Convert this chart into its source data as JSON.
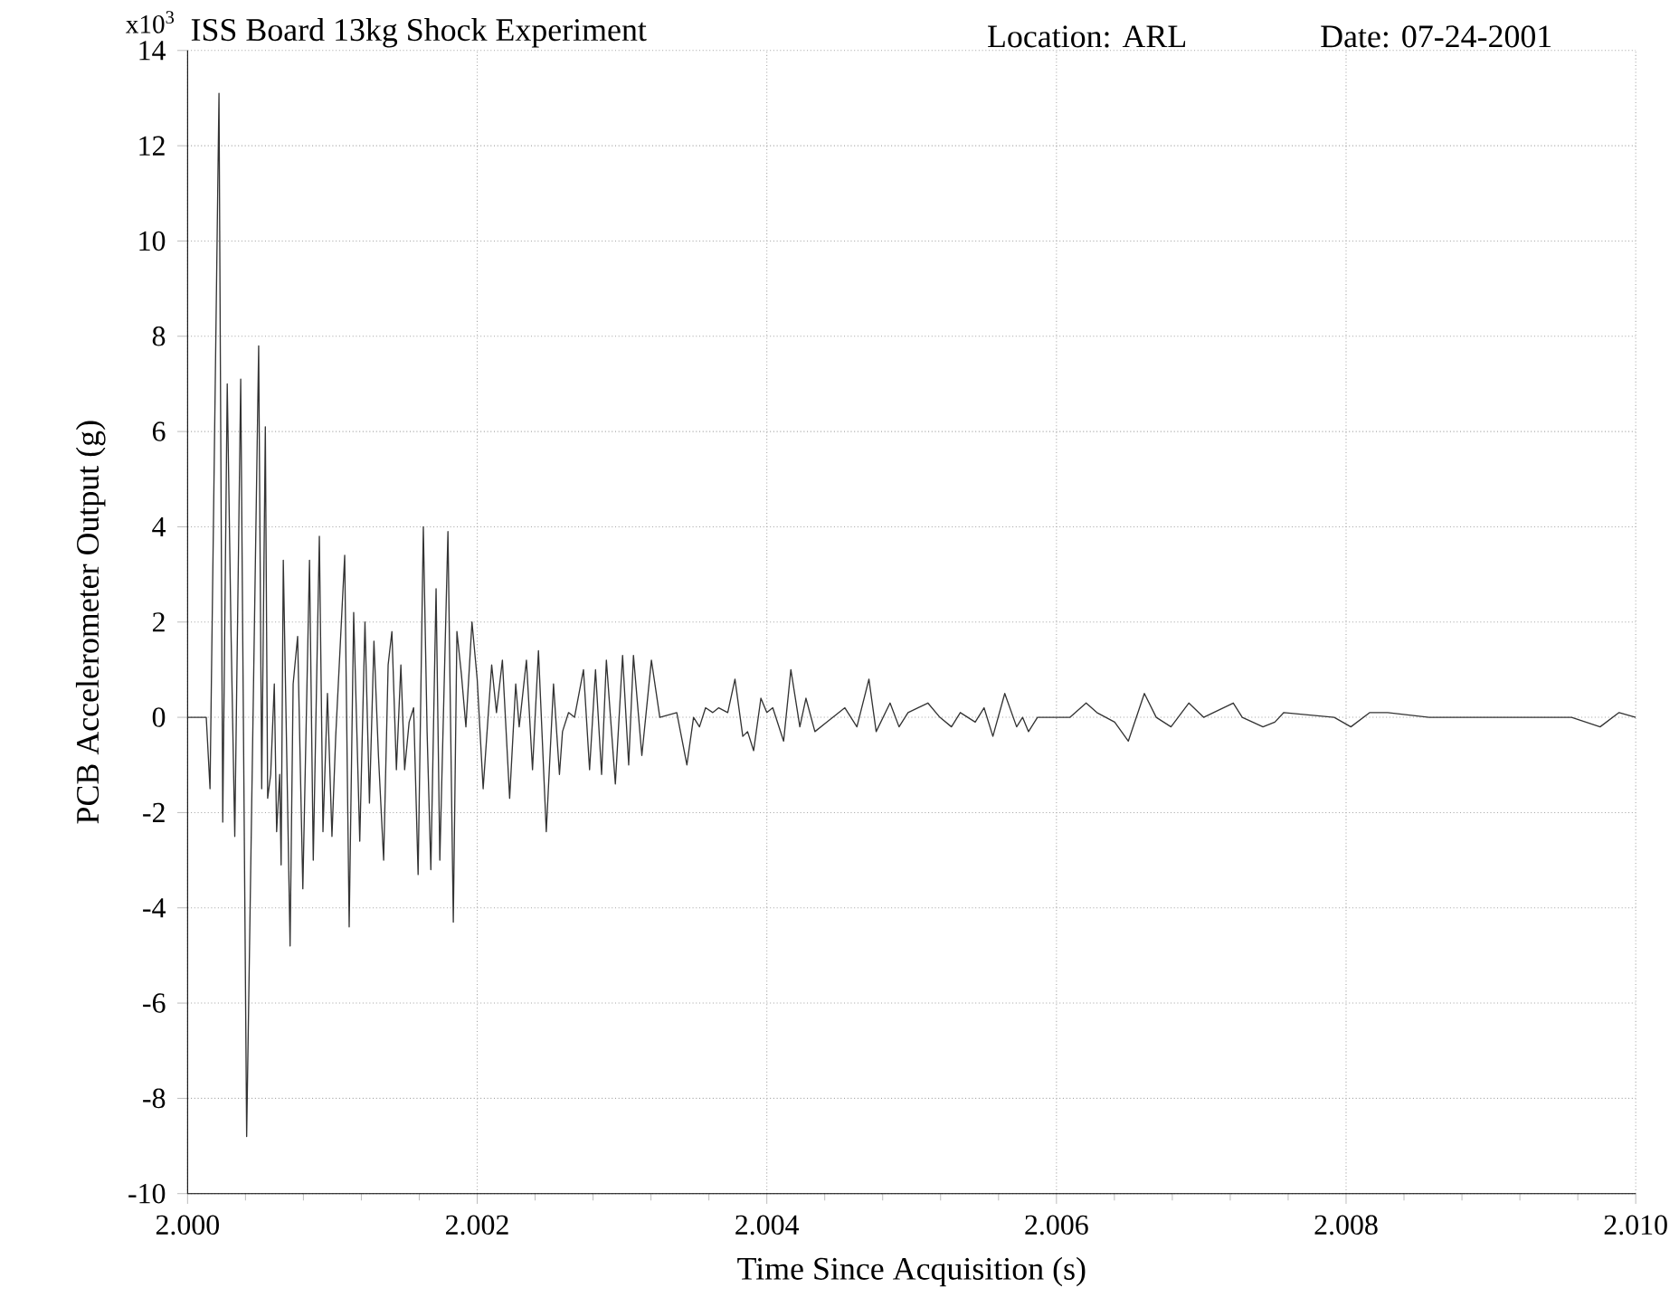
{
  "chart_data": {
    "type": "line",
    "title": "ISS Board 13kg Shock Experiment",
    "annotations": [
      "Location: ARL",
      "Date: 07-24-2001",
      "x10$^{3}$"
    ],
    "xlabel": "Time Since Acquisition (s)",
    "ylabel": "PCB Accelerometer Output (g)",
    "xlim": [
      2.0,
      2.01
    ],
    "xticks": [
      {
        "value": 2.0,
        "label": "2.000"
      },
      {
        "value": 2.002,
        "label": "2.002"
      },
      {
        "value": 2.004,
        "label": "2.004"
      },
      {
        "value": 2.006,
        "label": "2.006"
      },
      {
        "value": 2.008,
        "label": "2.008"
      },
      {
        "value": 2.01,
        "label": "2.010"
      }
    ],
    "ylim": [
      -10,
      14
    ],
    "yticks": [
      -10,
      -8,
      -6,
      -4,
      -2,
      0,
      2,
      4,
      6,
      8,
      10,
      12,
      14
    ],
    "grid": true,
    "series": [
      {
        "color": "#333333",
        "x": [
          2.0,
          2.000129,
          2.000155,
          2.000217,
          2.000243,
          2.000274,
          2.0003,
          2.000326,
          2.000367,
          2.000408,
          2.000491,
          2.000512,
          2.000537,
          2.000553,
          2.000574,
          2.000599,
          2.000615,
          2.000636,
          2.000646,
          2.000661,
          2.000708,
          2.000729,
          2.00076,
          2.000796,
          2.000842,
          2.000868,
          2.00091,
          2.000935,
          2.000966,
          2.000997,
          2.001023,
          2.001085,
          2.001116,
          2.001147,
          2.001189,
          2.001225,
          2.001256,
          2.001287,
          2.001318,
          2.001354,
          2.001385,
          2.001411,
          2.001442,
          2.001473,
          2.001499,
          2.00153,
          2.001561,
          2.001592,
          2.001628,
          2.001654,
          2.00168,
          2.001716,
          2.001742,
          2.001798,
          2.001835,
          2.00186,
          2.001891,
          2.001922,
          2.001964,
          2.002,
          2.002041,
          2.0021,
          2.002133,
          2.002174,
          2.002224,
          2.002266,
          2.00229,
          2.00234,
          2.002382,
          2.002423,
          2.002477,
          2.002527,
          2.002568,
          2.002589,
          2.002631,
          2.002672,
          2.002734,
          2.002776,
          2.002817,
          2.002859,
          2.002892,
          2.002954,
          2.003004,
          2.003046,
          2.003079,
          2.003137,
          2.003203,
          2.003261,
          2.003378,
          2.003448,
          2.003494,
          2.003535,
          2.003577,
          2.003627,
          2.003668,
          2.00373,
          2.00378,
          2.003834,
          2.003867,
          2.003909,
          2.003959,
          2.004,
          2.004041,
          2.004116,
          2.004166,
          2.004228,
          2.00427,
          2.004332,
          2.004415,
          2.004539,
          2.004622,
          2.004705,
          2.004755,
          2.004851,
          2.004913,
          2.004975,
          2.005112,
          2.005195,
          2.005275,
          2.005336,
          2.005439,
          2.0055,
          2.005561,
          2.005643,
          2.005725,
          2.005766,
          2.005807,
          2.005869,
          2.006,
          2.006094,
          2.006205,
          2.006279,
          2.006402,
          2.006496,
          2.006607,
          2.006689,
          2.006791,
          2.006914,
          2.007016,
          2.007221,
          2.007283,
          2.007426,
          2.007508,
          2.00757,
          2.007918,
          2.008033,
          2.008164,
          2.008287,
          2.008574,
          2.008943,
          2.009557,
          2.009754,
          2.009885,
          2.01
        ],
        "values": [
          0,
          0,
          -1.5,
          13.1,
          -2.2,
          7.0,
          1.8,
          -2.5,
          7.1,
          -8.8,
          7.8,
          -1.5,
          6.1,
          -1.7,
          -1.2,
          0.7,
          -2.4,
          -1.2,
          -3.1,
          3.3,
          -4.8,
          0.7,
          1.7,
          -3.6,
          3.3,
          -3.0,
          3.8,
          -2.4,
          0.5,
          -2.5,
          -0.4,
          3.4,
          -4.4,
          2.2,
          -2.6,
          2.0,
          -1.8,
          1.6,
          -0.8,
          -3.0,
          1.1,
          1.8,
          -1.1,
          1.1,
          -1.1,
          -0.1,
          0.2,
          -3.3,
          4.0,
          -0.3,
          -3.2,
          2.7,
          -3.0,
          3.9,
          -4.3,
          1.8,
          0.9,
          -0.2,
          2.0,
          0.8,
          -1.5,
          1.1,
          0.1,
          1.2,
          -1.7,
          0.7,
          -0.2,
          1.2,
          -1.1,
          1.4,
          -2.4,
          0.7,
          -1.2,
          -0.3,
          0.1,
          0,
          1.0,
          -1.1,
          1.0,
          -1.2,
          1.2,
          -1.4,
          1.3,
          -1.0,
          1.3,
          -0.8,
          1.2,
          0,
          0.1,
          -1.0,
          0,
          -0.2,
          0.2,
          0.1,
          0.2,
          0.1,
          0.8,
          -0.4,
          -0.3,
          -0.7,
          0.4,
          0.1,
          0.2,
          -0.5,
          1.0,
          -0.2,
          0.4,
          -0.3,
          -0.1,
          0.2,
          -0.2,
          0.8,
          -0.3,
          0.3,
          -0.2,
          0.1,
          0.3,
          0,
          -0.2,
          0.1,
          -0.1,
          0.2,
          -0.4,
          0.5,
          -0.2,
          0,
          -0.3,
          0,
          0,
          0,
          0.3,
          0.1,
          -0.1,
          -0.5,
          0.5,
          0,
          -0.2,
          0.3,
          0,
          0.3,
          0,
          -0.2,
          -0.1,
          0.1,
          0,
          -0.2,
          0.1,
          0.1,
          0,
          0,
          0,
          -0.2,
          0.1,
          0
        ]
      }
    ]
  }
}
